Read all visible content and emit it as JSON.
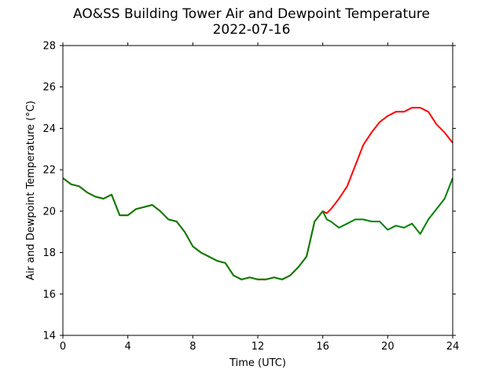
{
  "chart_data": {
    "type": "line",
    "title": "AO&SS Building Tower Air and Dewpoint Temperature",
    "subtitle": "2022-07-16",
    "xlabel": "Time (UTC)",
    "ylabel": "Air and Dewpoint Temperature (°C)",
    "xlim": [
      0,
      24
    ],
    "ylim": [
      14,
      28
    ],
    "xticks": [
      0,
      4,
      8,
      12,
      16,
      20,
      24
    ],
    "yticks": [
      14,
      16,
      18,
      20,
      22,
      24,
      26,
      28
    ],
    "grid": false,
    "legend": "none",
    "series": [
      {
        "color": "#ff0000",
        "x": [
          0,
          0.5,
          1,
          1.5,
          2,
          2.5,
          3,
          3.5,
          4,
          4.5,
          5,
          5.5,
          6,
          6.5,
          7,
          7.5,
          8,
          8.5,
          9,
          9.5,
          10,
          10.5,
          11,
          11.5,
          12,
          12.5,
          13,
          13.5,
          14,
          14.5,
          15,
          15.5,
          16,
          16.25,
          16.5,
          17,
          17.5,
          18,
          18.5,
          19,
          19.5,
          20,
          20.5,
          21,
          21.5,
          22,
          22.5,
          23,
          23.5,
          24
        ],
        "y": [
          21.6,
          21.3,
          21.2,
          20.9,
          20.7,
          20.6,
          20.8,
          19.8,
          19.8,
          20.1,
          20.2,
          20.3,
          20.0,
          19.6,
          19.5,
          19.0,
          18.3,
          18.0,
          17.8,
          17.6,
          17.5,
          16.9,
          16.7,
          16.8,
          16.7,
          16.7,
          16.8,
          16.7,
          16.9,
          17.3,
          17.8,
          19.5,
          20.0,
          19.9,
          20.1,
          20.6,
          21.2,
          22.2,
          23.2,
          23.8,
          24.3,
          24.6,
          24.8,
          24.8,
          25.0,
          25.0,
          24.8,
          24.2,
          23.8,
          23.3
        ]
      },
      {
        "color": "#008000",
        "x": [
          0,
          0.5,
          1,
          1.5,
          2,
          2.5,
          3,
          3.5,
          4,
          4.5,
          5,
          5.5,
          6,
          6.5,
          7,
          7.5,
          8,
          8.5,
          9,
          9.5,
          10,
          10.5,
          11,
          11.5,
          12,
          12.5,
          13,
          13.5,
          14,
          14.5,
          15,
          15.5,
          16,
          16.25,
          16.5,
          17,
          17.5,
          18,
          18.5,
          19,
          19.5,
          20,
          20.5,
          21,
          21.5,
          22,
          22.5,
          23,
          23.5,
          24
        ],
        "y": [
          21.6,
          21.3,
          21.2,
          20.9,
          20.7,
          20.6,
          20.8,
          19.8,
          19.8,
          20.1,
          20.2,
          20.3,
          20.0,
          19.6,
          19.5,
          19.0,
          18.3,
          18.0,
          17.8,
          17.6,
          17.5,
          16.9,
          16.7,
          16.8,
          16.7,
          16.7,
          16.8,
          16.7,
          16.9,
          17.3,
          17.8,
          19.5,
          20.0,
          19.6,
          19.5,
          19.2,
          19.4,
          19.6,
          19.6,
          19.5,
          19.5,
          19.1,
          19.3,
          19.2,
          19.4,
          18.9,
          19.6,
          20.1,
          20.6,
          21.6
        ]
      }
    ]
  }
}
